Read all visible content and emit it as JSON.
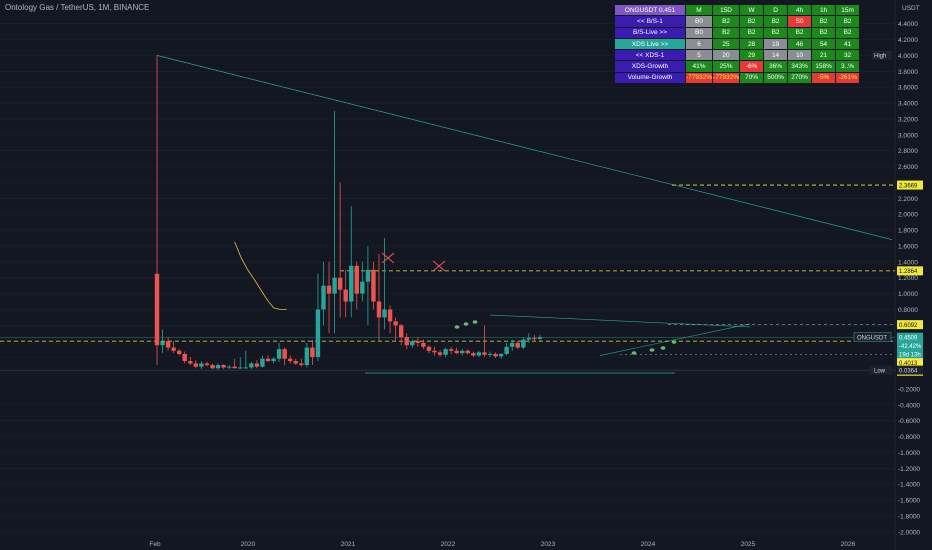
{
  "header": {
    "title": "Ontology Gas / TetherUS, 1M, BINANCE",
    "currency": "USDT"
  },
  "colors": {
    "background": "#131722",
    "candle_up": "#26a69a",
    "candle_down": "#ef5350",
    "trendline": "#26a69a",
    "level_line": "#f0e63c",
    "xds_line": "#f0c040",
    "signal_marker": "#ef5350",
    "dot_marker": "#66bb6a",
    "table_header": "#7e57c2",
    "table_label": "#3a1cb0",
    "table_green": "#1b8a1b",
    "table_gray": "#8a8d94",
    "table_red": "#e53935",
    "table_teal": "#26a69a",
    "table_yellow_text": "#ffeb3b"
  },
  "chart_data": {
    "type": "candlestick",
    "symbol": "ONGUSDT",
    "interval": "1M",
    "exchange": "BINANCE",
    "y_axis": {
      "ticks": [
        "4.4000",
        "4.2000",
        "4.0000",
        "3.8000",
        "3.6000",
        "3.4000",
        "3.2000",
        "3.0000",
        "2.8000",
        "2.6000",
        "2.4000",
        "2.2000",
        "2.0000",
        "1.8000",
        "1.6000",
        "1.4000",
        "1.2000",
        "1.0000",
        "0.8000",
        "0.6000",
        "0.4000",
        "0.2000",
        "0.0000",
        "-0.2000",
        "-0.4000",
        "-0.6000",
        "-0.8000",
        "-1.0000",
        "-1.2000",
        "-1.4000",
        "-1.6000",
        "-1.8000",
        "-2.0000"
      ],
      "range": [
        -2.0,
        4.4
      ]
    },
    "x_axis": {
      "ticks": [
        "Feb",
        "2020",
        "2021",
        "2022",
        "2023",
        "2024",
        "2025",
        "2026"
      ]
    },
    "candles": [
      {
        "t": 0,
        "o": 1.25,
        "h": 4.0,
        "l": 0.1,
        "c": 0.35
      },
      {
        "t": 1,
        "o": 0.35,
        "h": 0.55,
        "l": 0.25,
        "c": 0.4
      },
      {
        "t": 2,
        "o": 0.4,
        "h": 0.45,
        "l": 0.28,
        "c": 0.32
      },
      {
        "t": 3,
        "o": 0.32,
        "h": 0.4,
        "l": 0.25,
        "c": 0.28
      },
      {
        "t": 4,
        "o": 0.28,
        "h": 0.3,
        "l": 0.22,
        "c": 0.24
      },
      {
        "t": 5,
        "o": 0.24,
        "h": 0.27,
        "l": 0.12,
        "c": 0.15
      },
      {
        "t": 6,
        "o": 0.15,
        "h": 0.2,
        "l": 0.1,
        "c": 0.12
      },
      {
        "t": 7,
        "o": 0.12,
        "h": 0.16,
        "l": 0.06,
        "c": 0.08
      },
      {
        "t": 8,
        "o": 0.08,
        "h": 0.15,
        "l": 0.05,
        "c": 0.12
      },
      {
        "t": 9,
        "o": 0.12,
        "h": 0.14,
        "l": 0.08,
        "c": 0.1
      },
      {
        "t": 10,
        "o": 0.1,
        "h": 0.12,
        "l": 0.05,
        "c": 0.06
      },
      {
        "t": 11,
        "o": 0.06,
        "h": 0.12,
        "l": 0.04,
        "c": 0.1
      },
      {
        "t": 12,
        "o": 0.1,
        "h": 0.11,
        "l": 0.05,
        "c": 0.07
      },
      {
        "t": 13,
        "o": 0.07,
        "h": 0.1,
        "l": 0.05,
        "c": 0.08
      },
      {
        "t": 14,
        "o": 0.08,
        "h": 0.18,
        "l": 0.06,
        "c": 0.06
      },
      {
        "t": 15,
        "o": 0.06,
        "h": 0.2,
        "l": 0.05,
        "c": 0.07
      },
      {
        "t": 16,
        "o": 0.07,
        "h": 0.28,
        "l": 0.06,
        "c": 0.07
      },
      {
        "t": 17,
        "o": 0.07,
        "h": 0.14,
        "l": 0.05,
        "c": 0.12
      },
      {
        "t": 18,
        "o": 0.12,
        "h": 0.16,
        "l": 0.06,
        "c": 0.08
      },
      {
        "t": 19,
        "o": 0.08,
        "h": 0.22,
        "l": 0.07,
        "c": 0.18
      },
      {
        "t": 20,
        "o": 0.18,
        "h": 0.22,
        "l": 0.14,
        "c": 0.15
      },
      {
        "t": 21,
        "o": 0.15,
        "h": 0.2,
        "l": 0.12,
        "c": 0.18
      },
      {
        "t": 22,
        "o": 0.18,
        "h": 0.38,
        "l": 0.14,
        "c": 0.3
      },
      {
        "t": 23,
        "o": 0.3,
        "h": 0.32,
        "l": 0.1,
        "c": 0.18
      },
      {
        "t": 24,
        "o": 0.18,
        "h": 0.22,
        "l": 0.12,
        "c": 0.15
      },
      {
        "t": 25,
        "o": 0.15,
        "h": 0.18,
        "l": 0.1,
        "c": 0.12
      },
      {
        "t": 26,
        "o": 0.12,
        "h": 0.18,
        "l": 0.08,
        "c": 0.1
      },
      {
        "t": 27,
        "o": 0.1,
        "h": 0.38,
        "l": 0.07,
        "c": 0.32
      },
      {
        "t": 28,
        "o": 0.32,
        "h": 0.42,
        "l": 0.1,
        "c": 0.2
      },
      {
        "t": 29,
        "o": 0.2,
        "h": 1.25,
        "l": 0.15,
        "c": 0.8
      },
      {
        "t": 30,
        "o": 0.8,
        "h": 1.4,
        "l": 0.6,
        "c": 1.1
      },
      {
        "t": 31,
        "o": 1.1,
        "h": 1.4,
        "l": 0.5,
        "c": 1.0
      },
      {
        "t": 32,
        "o": 1.0,
        "h": 3.3,
        "l": 0.5,
        "c": 1.2
      },
      {
        "t": 33,
        "o": 1.2,
        "h": 2.4,
        "l": 0.7,
        "c": 1.05
      },
      {
        "t": 34,
        "o": 1.05,
        "h": 1.3,
        "l": 0.7,
        "c": 0.9
      },
      {
        "t": 35,
        "o": 0.9,
        "h": 2.1,
        "l": 0.7,
        "c": 1.35
      },
      {
        "t": 36,
        "o": 1.35,
        "h": 1.4,
        "l": 0.8,
        "c": 1.0
      },
      {
        "t": 37,
        "o": 1.0,
        "h": 1.4,
        "l": 0.9,
        "c": 1.15
      },
      {
        "t": 38,
        "o": 1.15,
        "h": 1.6,
        "l": 0.6,
        "c": 1.3
      },
      {
        "t": 39,
        "o": 1.3,
        "h": 1.4,
        "l": 0.8,
        "c": 0.9
      },
      {
        "t": 40,
        "o": 0.9,
        "h": 1.5,
        "l": 0.4,
        "c": 0.7
      },
      {
        "t": 41,
        "o": 0.7,
        "h": 1.7,
        "l": 0.55,
        "c": 0.8
      },
      {
        "t": 42,
        "o": 0.8,
        "h": 0.85,
        "l": 0.5,
        "c": 0.65
      },
      {
        "t": 43,
        "o": 0.65,
        "h": 0.7,
        "l": 0.4,
        "c": 0.6
      },
      {
        "t": 44,
        "o": 0.6,
        "h": 0.62,
        "l": 0.35,
        "c": 0.45
      },
      {
        "t": 45,
        "o": 0.45,
        "h": 0.5,
        "l": 0.3,
        "c": 0.35
      },
      {
        "t": 46,
        "o": 0.35,
        "h": 0.42,
        "l": 0.32,
        "c": 0.4
      },
      {
        "t": 47,
        "o": 0.4,
        "h": 0.45,
        "l": 0.33,
        "c": 0.38
      },
      {
        "t": 48,
        "o": 0.38,
        "h": 0.42,
        "l": 0.3,
        "c": 0.33
      },
      {
        "t": 49,
        "o": 0.33,
        "h": 0.35,
        "l": 0.25,
        "c": 0.28
      },
      {
        "t": 50,
        "o": 0.28,
        "h": 0.33,
        "l": 0.22,
        "c": 0.26
      },
      {
        "t": 51,
        "o": 0.26,
        "h": 0.29,
        "l": 0.2,
        "c": 0.23
      },
      {
        "t": 52,
        "o": 0.23,
        "h": 0.32,
        "l": 0.2,
        "c": 0.3
      },
      {
        "t": 53,
        "o": 0.3,
        "h": 0.33,
        "l": 0.24,
        "c": 0.28
      },
      {
        "t": 54,
        "o": 0.28,
        "h": 0.32,
        "l": 0.24,
        "c": 0.25
      },
      {
        "t": 55,
        "o": 0.25,
        "h": 0.3,
        "l": 0.22,
        "c": 0.28
      },
      {
        "t": 56,
        "o": 0.28,
        "h": 0.3,
        "l": 0.23,
        "c": 0.25
      },
      {
        "t": 57,
        "o": 0.25,
        "h": 0.27,
        "l": 0.2,
        "c": 0.22
      },
      {
        "t": 58,
        "o": 0.22,
        "h": 0.28,
        "l": 0.2,
        "c": 0.26
      },
      {
        "t": 59,
        "o": 0.26,
        "h": 0.6,
        "l": 0.2,
        "c": 0.23
      },
      {
        "t": 60,
        "o": 0.23,
        "h": 0.27,
        "l": 0.2,
        "c": 0.24
      },
      {
        "t": 61,
        "o": 0.24,
        "h": 0.26,
        "l": 0.19,
        "c": 0.21
      },
      {
        "t": 62,
        "o": 0.21,
        "h": 0.25,
        "l": 0.18,
        "c": 0.24
      },
      {
        "t": 63,
        "o": 0.24,
        "h": 0.38,
        "l": 0.22,
        "c": 0.33
      },
      {
        "t": 64,
        "o": 0.33,
        "h": 0.42,
        "l": 0.28,
        "c": 0.38
      },
      {
        "t": 65,
        "o": 0.38,
        "h": 0.4,
        "l": 0.3,
        "c": 0.32
      },
      {
        "t": 66,
        "o": 0.32,
        "h": 0.45,
        "l": 0.3,
        "c": 0.42
      },
      {
        "t": 67,
        "o": 0.42,
        "h": 0.5,
        "l": 0.38,
        "c": 0.44
      },
      {
        "t": 68,
        "o": 0.44,
        "h": 0.48,
        "l": 0.4,
        "c": 0.43
      },
      {
        "t": 69,
        "o": 0.43,
        "h": 0.48,
        "l": 0.41,
        "c": 0.45
      }
    ],
    "price_labels": [
      {
        "text": "2.3669",
        "price": 2.3669,
        "style": "level"
      },
      {
        "text": "1.2864",
        "price": 1.2864,
        "style": "level"
      },
      {
        "text": "0.6092",
        "price": 0.6092,
        "style": "level"
      },
      {
        "text": "0.4509",
        "price": 0.4509,
        "style": "last"
      },
      {
        "text": "-42.42%",
        "price": 0.38,
        "style": "last-sub"
      },
      {
        "text": "19d 13h",
        "price": 0.33,
        "style": "last-sub"
      },
      {
        "text": "0.4013",
        "price": 0.4013,
        "style": "level2"
      },
      {
        "text": "0.2345",
        "price": 0.2345,
        "style": "level2"
      },
      {
        "text": "0.0364",
        "price": 0.0364,
        "style": "low"
      }
    ],
    "tags": {
      "symbol_tag": "ONGUSDT",
      "high_tag": "High",
      "low_tag": "Low"
    }
  },
  "table": {
    "header": [
      "ONGUSDT 0.451",
      "M",
      "15D",
      "W",
      "D",
      "4h",
      "1h",
      "15m"
    ],
    "rows": [
      {
        "label": "<< B/S-1",
        "values": [
          "B0",
          "B2",
          "B2",
          "B2",
          "S0",
          "B2",
          "B2"
        ]
      },
      {
        "label": "B/S-Live >>",
        "values": [
          "B0",
          "B2",
          "B2",
          "B2",
          "B2",
          "B2",
          "B2"
        ]
      },
      {
        "label": "XDS Live >>",
        "values": [
          "6",
          "25",
          "28",
          "19",
          "46",
          "54",
          "41"
        ]
      },
      {
        "label": "<< XDS-1",
        "values": [
          "5",
          "20",
          "29",
          "14",
          "10",
          "21",
          "32"
        ]
      },
      {
        "label": "XDS-Growth",
        "values": [
          "41%",
          "25%",
          "-6%",
          "36%",
          "343%",
          "158%",
          "3..%"
        ]
      },
      {
        "label": "Volume-Growth",
        "values": [
          "-77932%",
          "-77932%",
          "70%",
          "500%",
          "270%",
          "-5%",
          "-261%"
        ]
      }
    ]
  }
}
